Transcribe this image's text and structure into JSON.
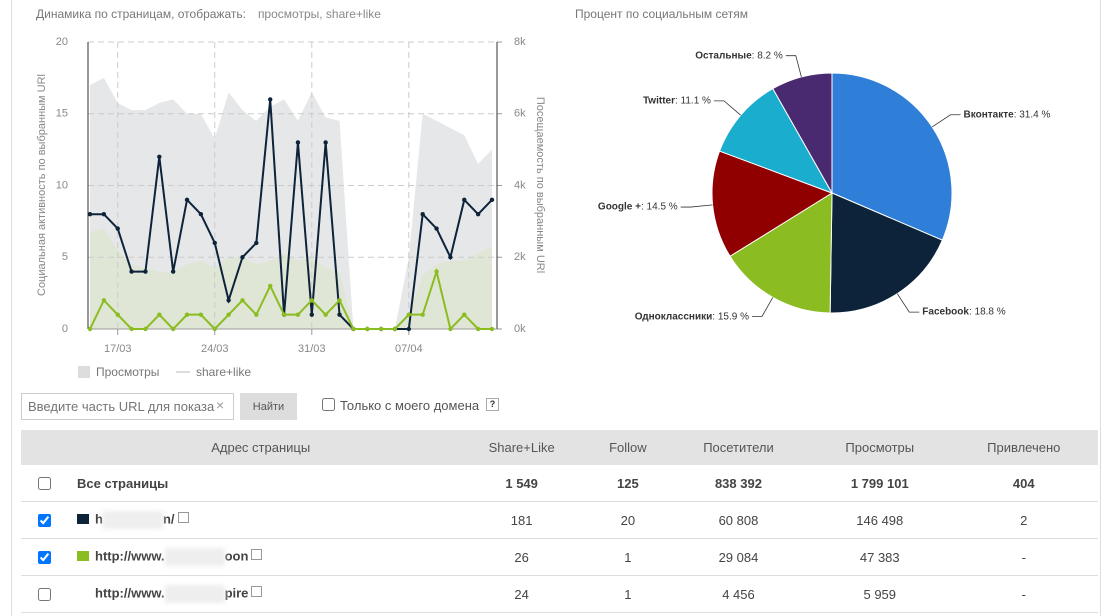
{
  "header": {
    "label": "Динамика по страницам, отображать:",
    "link": "просмотры, share+like"
  },
  "chart_data": [
    {
      "type": "combo",
      "ylabel": "Социальная активность по выбранным URl",
      "y2label": "Посещаемость по выбранным URl",
      "categories": [
        null,
        null,
        "17/03",
        null,
        null,
        null,
        null,
        null,
        null,
        "24/03",
        null,
        null,
        null,
        null,
        null,
        null,
        "31/03",
        null,
        null,
        null,
        null,
        null,
        null,
        "07/04",
        null,
        null,
        null,
        null,
        null,
        null
      ],
      "ylim": [
        0,
        20
      ],
      "yticks": [
        0,
        5,
        10,
        15,
        20
      ],
      "y2lim": [
        0,
        8000
      ],
      "y2ticks": [
        {
          "value": 0,
          "label": "0k"
        },
        {
          "value": 2000,
          "label": "2k"
        },
        {
          "value": 4000,
          "label": "4k"
        },
        {
          "value": 6000,
          "label": "6k"
        },
        {
          "value": 8000,
          "label": "8k"
        }
      ],
      "grid": true,
      "series": [
        {
          "type": "area",
          "axis": "y2",
          "color": "#e6e7e8",
          "values": [
            6800,
            7000,
            6300,
            6100,
            6100,
            6300,
            6400,
            6000,
            6000,
            5300,
            6600,
            6100,
            5800,
            6200,
            6400,
            5800,
            6600,
            5900,
            5800,
            0,
            0,
            0,
            0,
            2000,
            6000,
            5800,
            5600,
            5400,
            4600,
            5000
          ]
        },
        {
          "type": "area",
          "axis": "y2",
          "color": "#dfe6d5",
          "values": [
            2700,
            2800,
            2200,
            1800,
            1700,
            1600,
            1600,
            1800,
            1900,
            1700,
            2000,
            2000,
            1800,
            1900,
            2100,
            1900,
            2000,
            1700,
            1600,
            0,
            0,
            0,
            0,
            400,
            1500,
            1800,
            1900,
            1900,
            2100,
            2300
          ]
        },
        {
          "type": "line",
          "color": "#0d233a",
          "values": [
            8,
            8,
            7,
            4,
            4,
            12,
            4,
            9,
            8,
            6,
            2,
            5,
            6,
            16,
            1,
            13,
            1,
            13,
            1,
            0,
            0,
            0,
            0,
            0,
            8,
            7,
            5,
            9,
            8,
            9
          ]
        },
        {
          "type": "line",
          "color": "#8bbc21",
          "values": [
            0,
            2,
            1,
            0,
            0,
            1,
            0,
            1,
            1,
            0,
            1,
            2,
            1,
            3,
            1,
            1,
            2,
            1,
            2,
            0,
            0,
            0,
            0,
            1,
            1,
            4,
            0,
            1,
            0,
            0
          ]
        }
      ],
      "legend": [
        {
          "name": "Просмотры",
          "color": "#dddddd"
        },
        {
          "name": "share+like",
          "color": "#dddddd"
        }
      ]
    },
    {
      "type": "pie",
      "title": "Процент по социальным сетям",
      "categories": [
        "Вконтакте",
        "Facebook",
        "Одноклассники",
        "Google +",
        "Twitter",
        "Остальные"
      ],
      "values": [
        31.4,
        18.8,
        15.9,
        14.5,
        11.1,
        8.2
      ],
      "value_labels": [
        "31.4 %",
        "18.8 %",
        "15.9 %",
        "14.5 %",
        "11.1 %",
        "8.2 %"
      ],
      "colors": [
        "#2f7ed8",
        "#0d233a",
        "#8bbc21",
        "#910000",
        "#1aadce",
        "#492970"
      ]
    }
  ],
  "filter": {
    "placeholder": "Введите часть URL для показа",
    "button": "Найти",
    "checkbox_label": "Только с моего домена",
    "help": "?"
  },
  "table": {
    "columns": [
      "Адрес страницы",
      "Share+Like",
      "Follow",
      "Посетители",
      "Просмотры",
      "Привлечено"
    ],
    "rows": [
      {
        "checked": false,
        "url": [
          "Все страницы"
        ],
        "cells": [
          "1 549",
          "125",
          "838 392",
          "1 799 101",
          "404"
        ]
      },
      {
        "checked": true,
        "color": "#0d233a",
        "url": [
          "h",
          "n/"
        ],
        "cells": [
          "181",
          "20",
          "60 808",
          "146 498",
          "2"
        ]
      },
      {
        "checked": true,
        "color": "#8bbc21",
        "url": [
          "http://www.",
          "oon"
        ],
        "cells": [
          "26",
          "1",
          "29 084",
          "47 383",
          "-"
        ]
      },
      {
        "checked": false,
        "url": [
          "http://www.",
          "pire"
        ],
        "cells": [
          "24",
          "1",
          "4 456",
          "5 959",
          "-"
        ]
      }
    ]
  }
}
